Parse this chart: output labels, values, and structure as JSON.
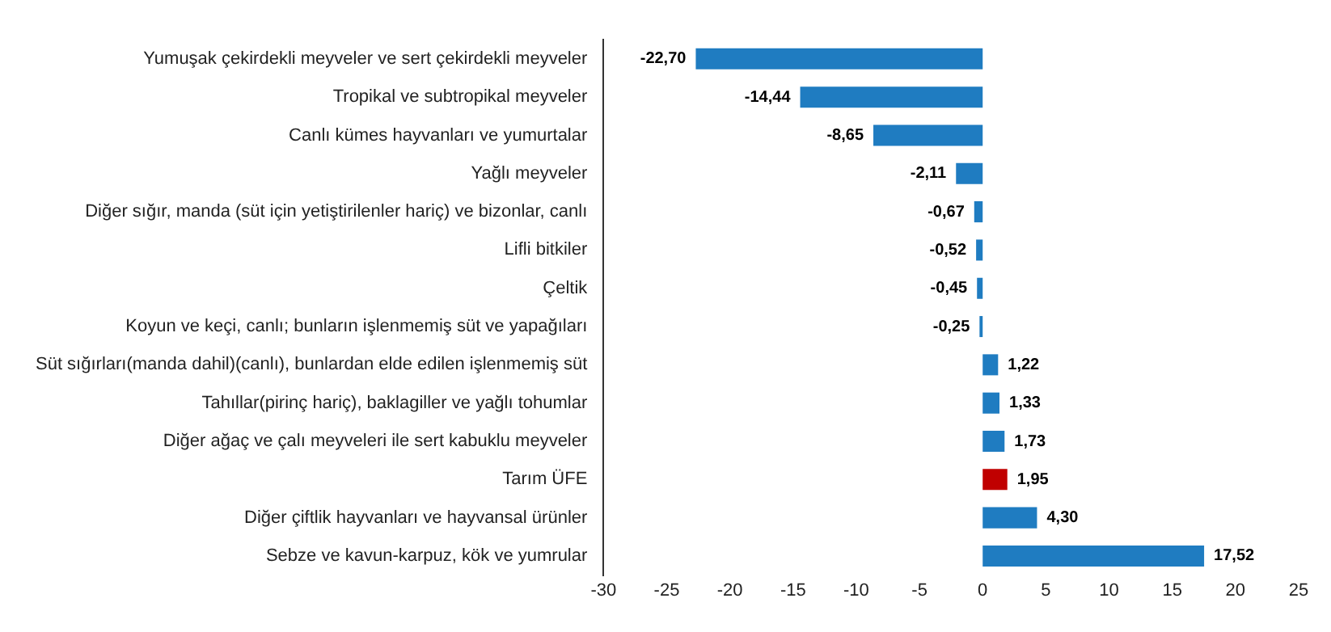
{
  "chart_data": {
    "type": "bar",
    "orientation": "horizontal",
    "categories": [
      "Yumuşak çekirdekli meyveler ve sert çekirdekli meyveler",
      "Tropikal ve subtropikal meyveler",
      "Canlı kümes hayvanları ve yumurtalar",
      "Yağlı meyveler",
      "Diğer sığır, manda (süt için yetiştirilenler hariç) ve bizonlar, canlı",
      "Lifli bitkiler",
      "Çeltik",
      "Koyun ve keçi, canlı; bunların işlenmemiş süt ve yapağıları",
      "Süt sığırları(manda dahil)(canlı), bunlardan elde edilen işlenmemiş süt",
      "Tahıllar(pirinç hariç), baklagiller ve yağlı tohumlar",
      "Diğer ağaç ve çalı meyveleri ile sert kabuklu meyveler",
      "Tarım ÜFE",
      "Diğer çiftlik hayvanları ve hayvansal ürünler",
      "Sebze ve kavun-karpuz, kök ve yumrular"
    ],
    "values": [
      -22.7,
      -14.44,
      -8.65,
      -2.11,
      -0.67,
      -0.52,
      -0.45,
      -0.25,
      1.22,
      1.33,
      1.73,
      1.95,
      4.3,
      17.52
    ],
    "value_labels": [
      "-22,70",
      "-14,44",
      "-8,65",
      "-2,11",
      "-0,67",
      "-0,52",
      "-0,45",
      "-0,25",
      "1,22",
      "1,33",
      "1,73",
      "1,95",
      "4,30",
      "17,52"
    ],
    "colors": [
      "#1f7cc1",
      "#1f7cc1",
      "#1f7cc1",
      "#1f7cc1",
      "#1f7cc1",
      "#1f7cc1",
      "#1f7cc1",
      "#1f7cc1",
      "#1f7cc1",
      "#1f7cc1",
      "#1f7cc1",
      "#c00000",
      "#1f7cc1",
      "#1f7cc1"
    ],
    "xlim": [
      -30,
      25
    ],
    "xticks": [
      -30,
      -25,
      -20,
      -15,
      -10,
      -5,
      0,
      5,
      10,
      15,
      20,
      25
    ],
    "grid": false,
    "legend": false
  }
}
